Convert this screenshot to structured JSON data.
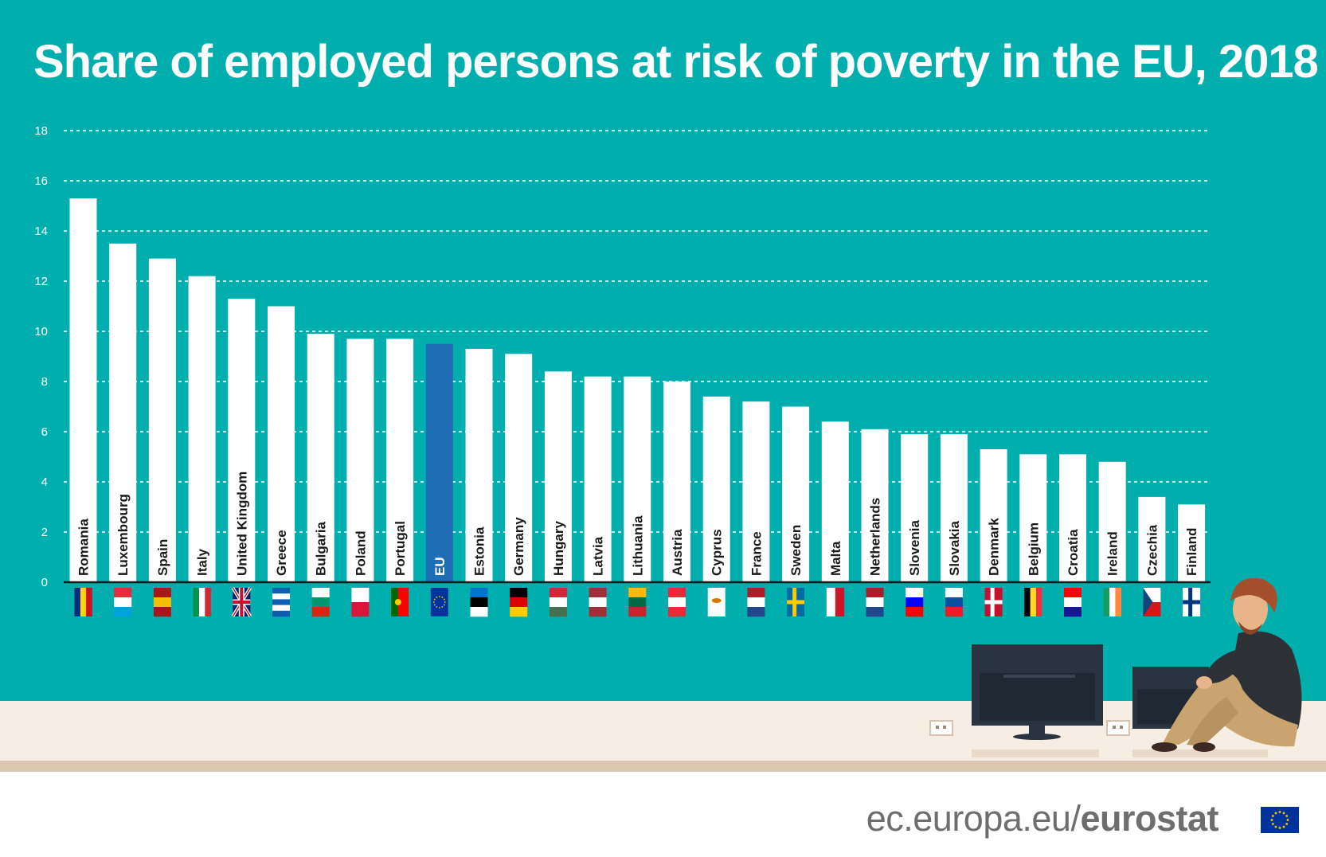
{
  "title": "Share of employed persons at risk of poverty in the EU, 2018",
  "footer": {
    "domain": "ec.europa.eu/",
    "brand": "eurostat"
  },
  "colors": {
    "background": "#00aeae",
    "bar": "#ffffff",
    "eu_bar": "#1e6db5",
    "grid": "#ffffff",
    "baseline": "#1a1a1a",
    "label_text": "#1a1a1a"
  },
  "chart_data": {
    "type": "bar",
    "title": "Share of employed persons at risk of poverty in the EU, 2018",
    "xlabel": "",
    "ylabel": "",
    "ylim": [
      0,
      18
    ],
    "yticks": [
      "0",
      "2",
      "4",
      "6",
      "8",
      "10",
      "12",
      "14",
      "16",
      "18"
    ],
    "grid": true,
    "highlight_category": "EU",
    "categories": [
      "Romania",
      "Luxembourg",
      "Spain",
      "Italy",
      "United Kingdom",
      "Greece",
      "Bulgaria",
      "Poland",
      "Portugal",
      "EU",
      "Estonia",
      "Germany",
      "Hungary",
      "Latvia",
      "Lithuania",
      "Austria",
      "Cyprus",
      "France",
      "Sweden",
      "Malta",
      "Netherlands",
      "Slovenia",
      "Slovakia",
      "Denmark",
      "Belgium",
      "Croatia",
      "Ireland",
      "Czechia",
      "Finland"
    ],
    "values": [
      15.3,
      13.5,
      12.9,
      12.2,
      11.3,
      11.0,
      9.9,
      9.7,
      9.7,
      9.5,
      9.3,
      9.1,
      8.4,
      8.2,
      8.2,
      8.0,
      7.4,
      7.2,
      7.0,
      6.4,
      6.1,
      5.9,
      5.9,
      5.3,
      5.1,
      5.1,
      4.8,
      3.4,
      3.1
    ],
    "flags": [
      {
        "type": "v",
        "colors": [
          "#002b7f",
          "#fcd116",
          "#ce1126"
        ]
      },
      {
        "type": "h",
        "colors": [
          "#ed2939",
          "#ffffff",
          "#00a1de"
        ]
      },
      {
        "type": "h",
        "colors": [
          "#aa151b",
          "#f1bf00",
          "#aa151b"
        ]
      },
      {
        "type": "v",
        "colors": [
          "#009246",
          "#ffffff",
          "#ce2b37"
        ]
      },
      {
        "type": "uk",
        "colors": [
          "#012169",
          "#ffffff",
          "#c8102e"
        ]
      },
      {
        "type": "h",
        "colors": [
          "#0d5eaf",
          "#ffffff",
          "#0d5eaf",
          "#ffffff",
          "#0d5eaf"
        ]
      },
      {
        "type": "h",
        "colors": [
          "#ffffff",
          "#00966e",
          "#d62612"
        ]
      },
      {
        "type": "h",
        "colors": [
          "#ffffff",
          "#dc143c"
        ]
      },
      {
        "type": "v2",
        "colors": [
          "#006600",
          "#ff0000"
        ]
      },
      {
        "type": "eu",
        "colors": [
          "#003399",
          "#ffcc00"
        ]
      },
      {
        "type": "h",
        "colors": [
          "#0072ce",
          "#000000",
          "#ffffff"
        ]
      },
      {
        "type": "h",
        "colors": [
          "#000000",
          "#dd0000",
          "#ffce00"
        ]
      },
      {
        "type": "h",
        "colors": [
          "#ce2939",
          "#ffffff",
          "#477050"
        ]
      },
      {
        "type": "h",
        "colors": [
          "#9e3039",
          "#ffffff",
          "#9e3039"
        ]
      },
      {
        "type": "h",
        "colors": [
          "#fdb913",
          "#006a44",
          "#c1272d"
        ]
      },
      {
        "type": "h",
        "colors": [
          "#ed2939",
          "#ffffff",
          "#ed2939"
        ]
      },
      {
        "type": "cy",
        "colors": [
          "#ffffff",
          "#d57800"
        ]
      },
      {
        "type": "h",
        "colors": [
          "#ae1c28",
          "#ffffff",
          "#21468b"
        ]
      },
      {
        "type": "nordic",
        "colors": [
          "#006aa7",
          "#fecc00"
        ]
      },
      {
        "type": "v",
        "colors": [
          "#ffffff",
          "#cf142b"
        ]
      },
      {
        "type": "h",
        "colors": [
          "#ae1c28",
          "#ffffff",
          "#21468b"
        ]
      },
      {
        "type": "h",
        "colors": [
          "#ffffff",
          "#0000ff",
          "#ff0000"
        ]
      },
      {
        "type": "h",
        "colors": [
          "#ffffff",
          "#0b4ea2",
          "#ee1c25"
        ]
      },
      {
        "type": "nordic",
        "colors": [
          "#c8102e",
          "#ffffff"
        ]
      },
      {
        "type": "v",
        "colors": [
          "#000000",
          "#fdda24",
          "#ef3340"
        ]
      },
      {
        "type": "h",
        "colors": [
          "#ff0000",
          "#ffffff",
          "#171796"
        ]
      },
      {
        "type": "v",
        "colors": [
          "#169b62",
          "#ffffff",
          "#ff883e"
        ]
      },
      {
        "type": "cz",
        "colors": [
          "#ffffff",
          "#d7141a",
          "#11457e"
        ]
      },
      {
        "type": "nordic",
        "colors": [
          "#ffffff",
          "#003580"
        ]
      }
    ]
  }
}
